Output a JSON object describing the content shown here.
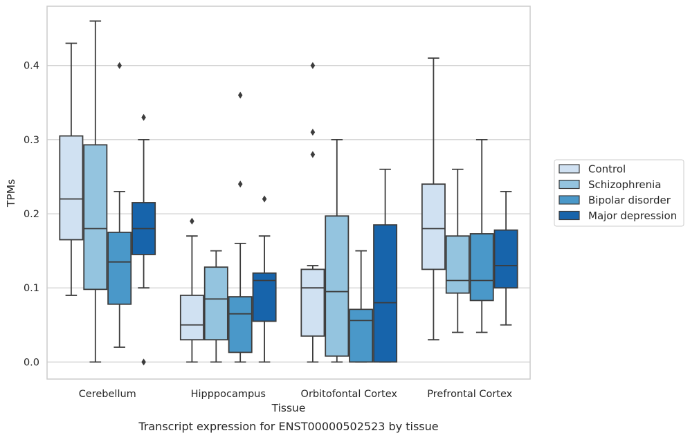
{
  "chart_data": {
    "type": "box",
    "caption": "Transcript expression for ENST00000502523 by tissue",
    "xlabel": "Tissue",
    "ylabel": "TPMs",
    "ylim": [
      -0.023,
      0.48
    ],
    "yticks": [
      "0.0",
      "0.1",
      "0.2",
      "0.3",
      "0.4"
    ],
    "grid": true,
    "legend_position": "right",
    "categories": [
      "Cerebellum",
      "Hipppocampus",
      "Orbitofontal Cortex",
      "Prefrontal Cortex"
    ],
    "series": [
      {
        "name": "Control",
        "color": "#d0e1f2",
        "boxes": [
          {
            "whislo": 0.09,
            "q1": 0.165,
            "med": 0.22,
            "q3": 0.305,
            "whishi": 0.43,
            "fliers": []
          },
          {
            "whislo": 0.0,
            "q1": 0.03,
            "med": 0.05,
            "q3": 0.09,
            "whishi": 0.17,
            "fliers": [
              0.19
            ]
          },
          {
            "whislo": 0.0,
            "q1": 0.035,
            "med": 0.1,
            "q3": 0.125,
            "whishi": 0.13,
            "fliers": [
              0.28,
              0.31,
              0.4
            ]
          },
          {
            "whislo": 0.03,
            "q1": 0.125,
            "med": 0.18,
            "q3": 0.24,
            "whishi": 0.41,
            "fliers": []
          }
        ]
      },
      {
        "name": "Schizophrenia",
        "color": "#94c4df",
        "boxes": [
          {
            "whislo": 0.0,
            "q1": 0.098,
            "med": 0.18,
            "q3": 0.293,
            "whishi": 0.46,
            "fliers": []
          },
          {
            "whislo": 0.0,
            "q1": 0.03,
            "med": 0.085,
            "q3": 0.128,
            "whishi": 0.15,
            "fliers": []
          },
          {
            "whislo": 0.0,
            "q1": 0.008,
            "med": 0.095,
            "q3": 0.197,
            "whishi": 0.3,
            "fliers": []
          },
          {
            "whislo": 0.04,
            "q1": 0.093,
            "med": 0.11,
            "q3": 0.17,
            "whishi": 0.26,
            "fliers": []
          }
        ]
      },
      {
        "name": "Bipolar disorder",
        "color": "#4a98c9",
        "boxes": [
          {
            "whislo": 0.02,
            "q1": 0.078,
            "med": 0.135,
            "q3": 0.175,
            "whishi": 0.23,
            "fliers": [
              0.4
            ]
          },
          {
            "whislo": 0.0,
            "q1": 0.013,
            "med": 0.065,
            "q3": 0.088,
            "whishi": 0.16,
            "fliers": [
              0.24,
              0.36
            ]
          },
          {
            "whislo": 0.0,
            "q1": 0.0,
            "med": 0.056,
            "q3": 0.071,
            "whishi": 0.15,
            "fliers": []
          },
          {
            "whislo": 0.04,
            "q1": 0.083,
            "med": 0.11,
            "q3": 0.173,
            "whishi": 0.3,
            "fliers": []
          }
        ]
      },
      {
        "name": "Major depression",
        "color": "#1764ab",
        "boxes": [
          {
            "whislo": 0.1,
            "q1": 0.145,
            "med": 0.18,
            "q3": 0.215,
            "whishi": 0.3,
            "fliers": [
              0.0,
              0.33
            ]
          },
          {
            "whislo": 0.0,
            "q1": 0.055,
            "med": 0.11,
            "q3": 0.12,
            "whishi": 0.17,
            "fliers": [
              0.22
            ]
          },
          {
            "whislo": 0.0,
            "q1": 0.0,
            "med": 0.08,
            "q3": 0.185,
            "whishi": 0.26,
            "fliers": []
          },
          {
            "whislo": 0.05,
            "q1": 0.1,
            "med": 0.13,
            "q3": 0.178,
            "whishi": 0.23,
            "fliers": []
          }
        ]
      }
    ]
  }
}
